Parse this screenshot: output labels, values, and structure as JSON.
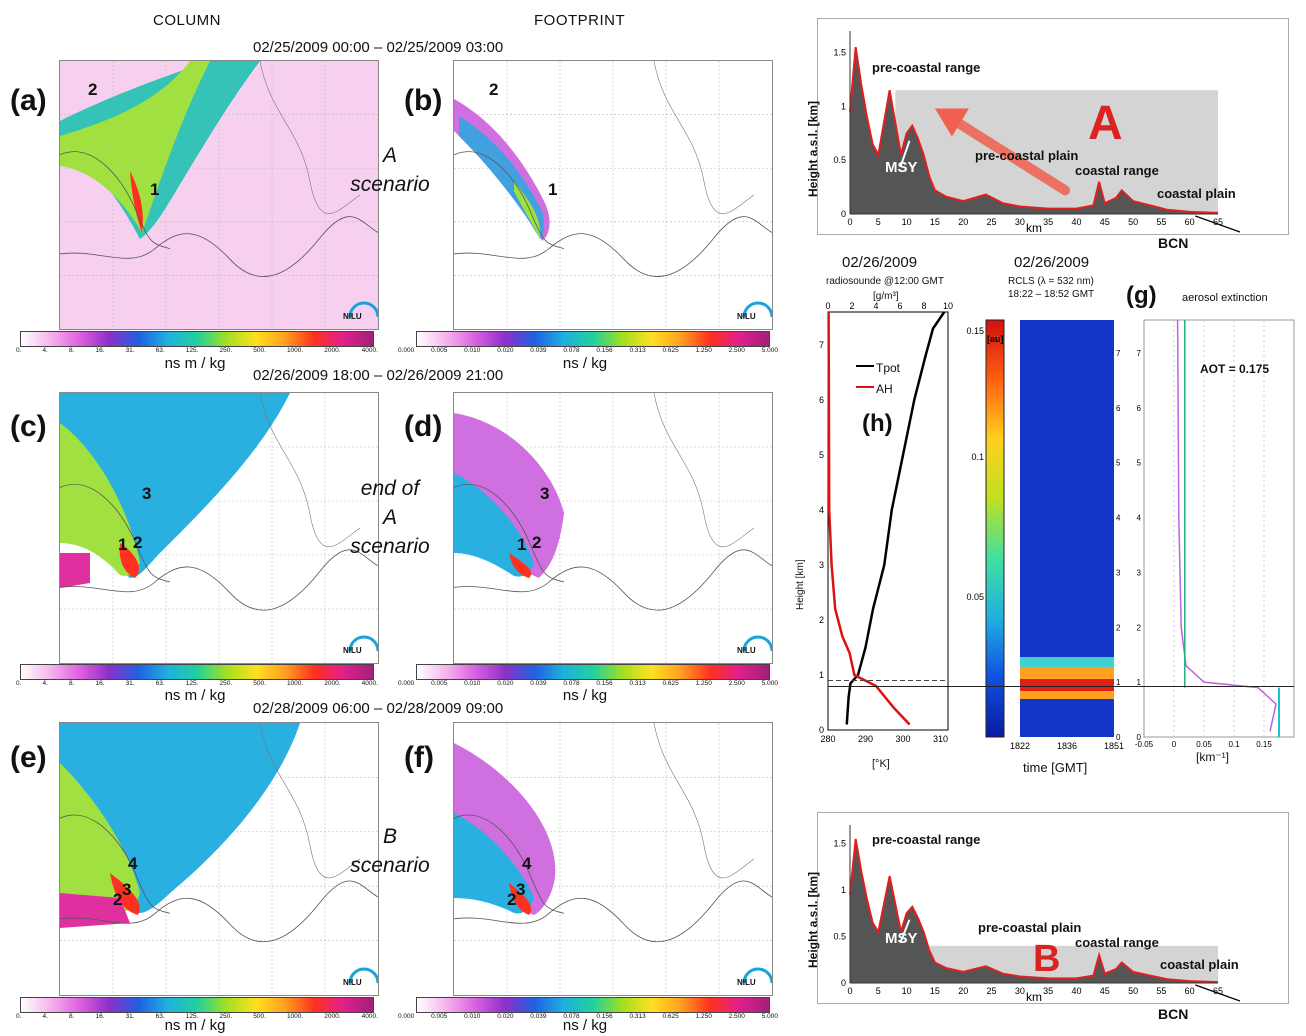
{
  "headers": {
    "column": "COLUMN",
    "footprint": "FOOTPRINT"
  },
  "rows": [
    {
      "date": "02/25/2009 00:00 – 02/25/2009 03:00",
      "scenario": [
        "A",
        "scenario"
      ],
      "left_label": "(a)",
      "right_label": "(b)"
    },
    {
      "date": "02/26/2009 18:00 – 02/26/2009 21:00",
      "scenario": [
        "end of",
        "A",
        "scenario"
      ],
      "left_label": "(c)",
      "right_label": "(d)"
    },
    {
      "date": "02/28/2009 06:00 – 02/28/2009 09:00",
      "scenario": [
        "B",
        "scenario"
      ],
      "left_label": "(e)",
      "right_label": "(f)"
    }
  ],
  "map_numbers": {
    "a": [
      "2",
      "1"
    ],
    "b": [
      "2",
      "1"
    ],
    "c": [
      "3",
      "1",
      "2"
    ],
    "d": [
      "3",
      "1",
      "2"
    ],
    "e": [
      "4",
      "3",
      "2"
    ],
    "f": [
      "4",
      "3",
      "2"
    ]
  },
  "logo_text": "NILU",
  "column_colorbar": {
    "ticks": [
      "0.",
      "4.",
      "8.",
      "16.",
      "31.",
      "63.",
      "125.",
      "250.",
      "500.",
      "1000.",
      "2000.",
      "4000."
    ],
    "unit": "ns m / kg"
  },
  "footprint_colorbar": {
    "ticks": [
      "0.000",
      "0.005",
      "0.010",
      "0.020",
      "0.039",
      "0.078",
      "0.156",
      "0.313",
      "0.625",
      "1.250",
      "2.500",
      "5.000"
    ],
    "unit": "ns / kg"
  },
  "profile_top": {
    "ylabel": "Height a.s.l. [km]",
    "xlabel": "km",
    "x_ticks": [
      "0",
      "5",
      "10",
      "15",
      "20",
      "25",
      "30",
      "35",
      "40",
      "45",
      "50",
      "55",
      "60",
      "65"
    ],
    "y_ticks": [
      "0",
      "0.5",
      "1",
      "1.5"
    ],
    "annotations": [
      "pre-coastal range",
      "MSY",
      "pre-coastal plain",
      "coastal range",
      "coastal plain"
    ],
    "scenario_letter": "A",
    "bcn": "BCN"
  },
  "profile_bottom": {
    "ylabel": "Height a.s.l. [km]",
    "xlabel": "km",
    "x_ticks": [
      "0",
      "5",
      "10",
      "15",
      "20",
      "25",
      "30",
      "35",
      "40",
      "45",
      "50",
      "55",
      "60",
      "65"
    ],
    "y_ticks": [
      "0",
      "0.5",
      "1",
      "1.5"
    ],
    "annotations": [
      "pre-coastal range",
      "MSY",
      "pre-coastal plain",
      "coastal range",
      "coastal plain"
    ],
    "scenario_letter": "B",
    "bcn": "BCN"
  },
  "radiosonde": {
    "date": "02/26/2009",
    "subtitle": "radiosounde @12:00 GMT",
    "top_unit": "[g/m³]",
    "top_ticks": [
      "0",
      "2",
      "4",
      "6",
      "8",
      "10"
    ],
    "bottom_ticks": [
      "280",
      "290",
      "300",
      "310"
    ],
    "bottom_unit": "[°K]",
    "ylabel": "Height [km]",
    "y_ticks": [
      "0",
      "1",
      "2",
      "3",
      "4",
      "5",
      "6",
      "7"
    ],
    "legend": [
      "Tpot",
      "AH"
    ],
    "panel_label": "(h)",
    "colors": {
      "tpot": "#000000",
      "ah": "#dd1111"
    }
  },
  "rcls": {
    "date": "02/26/2009",
    "subtitle1": "RCLS (λ = 532 nm)",
    "subtitle2": "18:22 – 18:52 GMT",
    "cb_unit": "[au]",
    "cb_ticks": [
      "0.15",
      "0.1",
      "0.05",
      "0"
    ],
    "x_ticks": [
      "1822",
      "1836",
      "1851"
    ],
    "xlabel": "time [GMT]",
    "y_ticks": [
      "0",
      "1",
      "2",
      "3",
      "4",
      "5",
      "6",
      "7"
    ]
  },
  "extinction": {
    "panel_label": "(g)",
    "title": "aerosol extinction",
    "aot": "AOT = 0.175",
    "x_ticks": [
      "-0.05",
      "0",
      "0.05",
      "0.1",
      "0.15"
    ],
    "xlabel": "[km⁻¹]",
    "y_ticks": [
      "0",
      "1",
      "2",
      "3",
      "4",
      "5",
      "6",
      "7"
    ]
  }
}
